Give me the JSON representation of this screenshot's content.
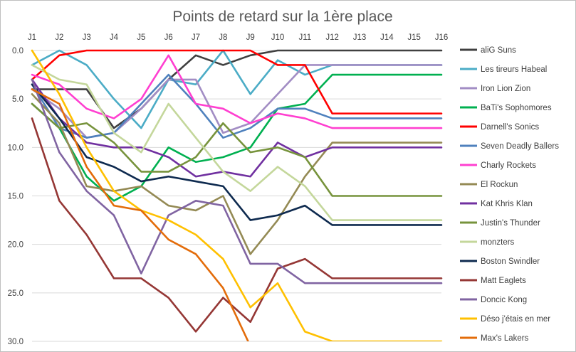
{
  "chart_data": {
    "type": "line",
    "title": "Points de retard sur la 1ère place",
    "xlabel": "",
    "ylabel": "",
    "x_axis_position": "top",
    "y_axis_reversed": true,
    "ylim": [
      0,
      30
    ],
    "yticks": [
      "0.0",
      "5.0",
      "10.0",
      "15.0",
      "20.0",
      "25.0",
      "30.0"
    ],
    "ytick_values": [
      0,
      5,
      10,
      15,
      20,
      25,
      30
    ],
    "categories": [
      "J1",
      "J2",
      "J3",
      "J4",
      "J5",
      "J6",
      "J7",
      "J8",
      "J9",
      "J10",
      "J11",
      "J12",
      "J13",
      "J14",
      "J15",
      "J16"
    ],
    "grid": "horizontal",
    "legend_position": "right",
    "series": [
      {
        "name": "aliG Suns",
        "color": "#404040",
        "values": [
          4,
          4,
          4,
          8,
          6,
          3,
          0.5,
          1.5,
          0.5,
          0,
          0,
          0,
          0,
          0,
          0,
          0
        ]
      },
      {
        "name": "Les tireurs Habeal",
        "color": "#4bacc6",
        "values": [
          1.5,
          0,
          1.5,
          5,
          8,
          3,
          3.5,
          0,
          4.5,
          1,
          2.5,
          1.5,
          1.5,
          1.5,
          1.5,
          1.5
        ]
      },
      {
        "name": "Iron Lion Zion",
        "color": "#a28dc4",
        "values": [
          4,
          6,
          9,
          8.5,
          6,
          3,
          3,
          8.5,
          7.5,
          4.5,
          1.5,
          1.5,
          1.5,
          1.5,
          1.5,
          1.5
        ]
      },
      {
        "name": "BaTi's Sophomores",
        "color": "#00b050",
        "values": [
          5.5,
          8,
          13,
          15.5,
          14,
          10,
          11.5,
          11,
          10,
          6,
          5.5,
          2.5,
          2.5,
          2.5,
          2.5,
          2.5
        ]
      },
      {
        "name": "Darnell's Sonics",
        "color": "#ff0000",
        "values": [
          3,
          0.5,
          0,
          0,
          0,
          0,
          0,
          0,
          0,
          1.5,
          1.5,
          6.5,
          6.5,
          6.5,
          6.5,
          6.5
        ]
      },
      {
        "name": "Seven Deadly Ballers",
        "color": "#4f81bd",
        "values": [
          3.5,
          8,
          9,
          8.5,
          5.5,
          2.5,
          5.5,
          9,
          8,
          6,
          6,
          7,
          7,
          7,
          7,
          7
        ]
      },
      {
        "name": "Charly Rockets",
        "color": "#ff3fd0",
        "values": [
          2.5,
          3.5,
          6,
          7,
          5,
          0.5,
          5.5,
          6,
          7.5,
          6.5,
          7,
          8,
          8,
          8,
          8,
          8
        ]
      },
      {
        "name": "El Rockun",
        "color": "#948a54",
        "values": [
          4.5,
          7.5,
          14,
          14.5,
          14,
          16,
          16.5,
          15,
          21,
          17.5,
          13,
          9.5,
          9.5,
          9.5,
          9.5,
          9.5
        ]
      },
      {
        "name": "Kat Khris Klan",
        "color": "#7030a0",
        "values": [
          3,
          7,
          9.5,
          10,
          10,
          11,
          13,
          12.5,
          13,
          9.5,
          11,
          10,
          10,
          10,
          10,
          10
        ]
      },
      {
        "name": "Justin's Thunder",
        "color": "#77933c",
        "values": [
          5.5,
          8,
          7.5,
          9.5,
          12.5,
          12.5,
          11,
          7.5,
          10.5,
          10,
          11,
          15,
          15,
          15,
          15,
          15
        ]
      },
      {
        "name": "monzters",
        "color": "#c4d79b",
        "values": [
          1.5,
          3,
          3.5,
          8.5,
          10.5,
          5.5,
          9,
          12.5,
          14.5,
          12,
          14,
          17.5,
          17.5,
          17.5,
          17.5,
          17.5
        ]
      },
      {
        "name": "Boston Swindler",
        "color": "#0e2a4f",
        "values": [
          3.5,
          7,
          11,
          12,
          13.5,
          13,
          13.5,
          14,
          17.5,
          17,
          16,
          18,
          18,
          18,
          18,
          18
        ]
      },
      {
        "name": "Matt Eaglets",
        "color": "#953735",
        "values": [
          7,
          15.5,
          19,
          23.5,
          23.5,
          25.5,
          29,
          25.5,
          28,
          22.5,
          21.5,
          23.5,
          23.5,
          23.5,
          23.5,
          23.5
        ]
      },
      {
        "name": "Doncic Kong",
        "color": "#8064a2",
        "values": [
          3,
          10.5,
          14.5,
          17,
          23,
          17,
          15.5,
          16,
          22,
          22,
          24,
          24,
          24,
          24,
          24,
          24
        ]
      },
      {
        "name": "Déso j'étais en mer",
        "color": "#ffc000",
        "values": [
          0,
          4.5,
          10,
          14.5,
          16.5,
          17.5,
          19,
          21.5,
          26.5,
          24,
          29,
          30,
          30,
          30,
          30,
          30
        ]
      },
      {
        "name": "Max's Lakers",
        "color": "#e36c0a",
        "values": [
          4,
          5.5,
          12,
          16,
          16.5,
          19.5,
          21,
          24.5,
          30.5,
          null,
          null,
          null,
          null,
          null,
          null,
          null
        ]
      }
    ]
  }
}
